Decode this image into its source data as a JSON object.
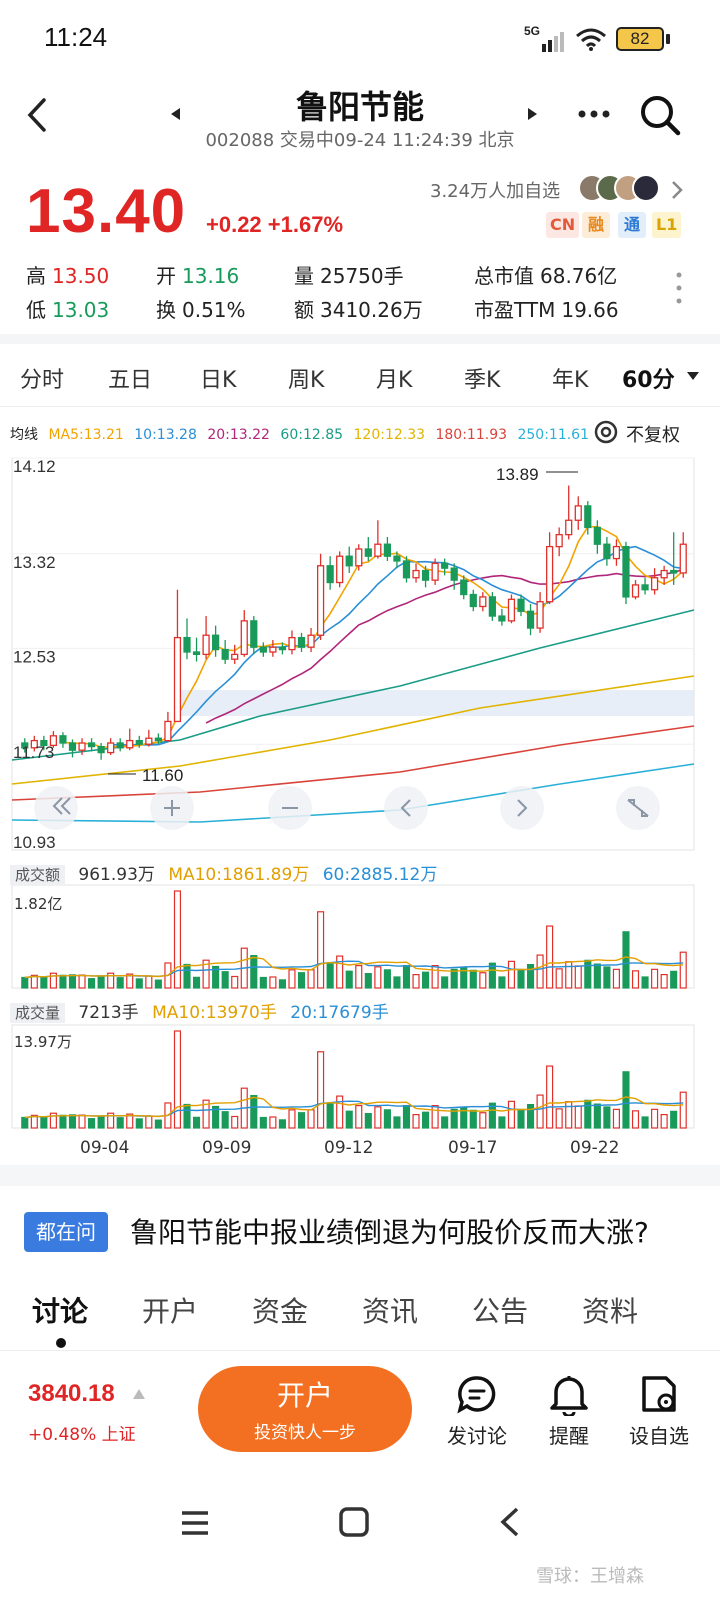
{
  "status_bar": {
    "time": "11:24",
    "network": "5G",
    "battery": "82"
  },
  "header": {
    "title": "鲁阳节能",
    "subtitle": "002088 交易中09-24 11:24:39 北京"
  },
  "quote": {
    "price": "13.40",
    "change": "+0.22 +1.67%",
    "watchers": "3.24万人加自选",
    "tags": [
      "CN",
      "融",
      "通",
      "L1"
    ],
    "stats": [
      {
        "label": "高",
        "value": "13.50"
      },
      {
        "label": "开",
        "value": "13.16"
      },
      {
        "label": "量",
        "value": "25750手"
      },
      {
        "label": "总市值",
        "value": "68.76亿"
      },
      {
        "label": "低",
        "value": "13.03"
      },
      {
        "label": "换",
        "value": "0.51%"
      },
      {
        "label": "额",
        "value": "3410.26万"
      },
      {
        "label": "市盈TTM",
        "value": "19.66"
      }
    ]
  },
  "period_tabs": [
    "分时",
    "五日",
    "日K",
    "周K",
    "月K",
    "季K",
    "年K",
    "60分"
  ],
  "ma_legend": {
    "label": "均线",
    "items": [
      {
        "text": "MA5:13.21",
        "color": "#f2a300"
      },
      {
        "text": "10:13.28",
        "color": "#2a8fd6"
      },
      {
        "text": "20:13.22",
        "color": "#b0267a"
      },
      {
        "text": "60:12.85",
        "color": "#1a9c86"
      },
      {
        "text": "120:12.33",
        "color": "#e0b400"
      },
      {
        "text": "180:11.93",
        "color": "#d9443a"
      },
      {
        "text": "250:11.61",
        "color": "#2ab0d8"
      }
    ],
    "adjust": "不复权"
  },
  "chart_data": {
    "type": "candlestick",
    "y_ticks": [
      "14.12",
      "13.32",
      "12.53",
      "11.73",
      "10.93"
    ],
    "high_marker": "13.89",
    "low_marker": "11.60",
    "x_labels": [
      "09-04",
      "09-09",
      "09-12",
      "09-17",
      "09-22"
    ],
    "candles": [
      [
        11.74,
        11.7,
        11.78,
        11.66
      ],
      [
        11.7,
        11.76,
        11.8,
        11.67
      ],
      [
        11.76,
        11.72,
        11.8,
        11.68
      ],
      [
        11.72,
        11.8,
        11.84,
        11.7
      ],
      [
        11.8,
        11.74,
        11.83,
        11.7
      ],
      [
        11.74,
        11.68,
        11.77,
        11.62
      ],
      [
        11.68,
        11.74,
        11.78,
        11.64
      ],
      [
        11.74,
        11.71,
        11.78,
        11.67
      ],
      [
        11.71,
        11.66,
        11.74,
        11.6
      ],
      [
        11.66,
        11.74,
        11.78,
        11.64
      ],
      [
        11.74,
        11.7,
        11.78,
        11.67
      ],
      [
        11.7,
        11.76,
        11.86,
        11.68
      ],
      [
        11.76,
        11.73,
        11.8,
        11.7
      ],
      [
        11.73,
        11.78,
        11.85,
        11.71
      ],
      [
        11.78,
        11.76,
        11.82,
        11.73
      ],
      [
        11.76,
        11.92,
        12.0,
        11.75
      ],
      [
        11.92,
        12.62,
        13.02,
        11.92
      ],
      [
        12.62,
        12.5,
        12.78,
        12.44
      ],
      [
        12.5,
        12.48,
        12.62,
        12.42
      ],
      [
        12.48,
        12.64,
        12.8,
        12.44
      ],
      [
        12.64,
        12.52,
        12.72,
        12.46
      ],
      [
        12.52,
        12.44,
        12.6,
        12.4
      ],
      [
        12.44,
        12.48,
        12.56,
        12.4
      ],
      [
        12.48,
        12.76,
        12.85,
        12.46
      ],
      [
        12.76,
        12.54,
        12.8,
        12.48
      ],
      [
        12.54,
        12.5,
        12.58,
        12.46
      ],
      [
        12.5,
        12.54,
        12.6,
        12.46
      ],
      [
        12.54,
        12.52,
        12.58,
        12.48
      ],
      [
        12.52,
        12.62,
        12.68,
        12.48
      ],
      [
        12.62,
        12.54,
        12.66,
        12.5
      ],
      [
        12.54,
        12.64,
        12.7,
        12.5
      ],
      [
        12.64,
        13.22,
        13.32,
        12.6
      ],
      [
        13.22,
        13.08,
        13.3,
        13.02
      ],
      [
        13.08,
        13.3,
        13.34,
        13.04
      ],
      [
        13.3,
        13.22,
        13.38,
        13.16
      ],
      [
        13.22,
        13.36,
        13.4,
        13.18
      ],
      [
        13.36,
        13.3,
        13.46,
        13.26
      ],
      [
        13.3,
        13.4,
        13.6,
        13.28
      ],
      [
        13.4,
        13.3,
        13.46,
        13.26
      ],
      [
        13.3,
        13.26,
        13.34,
        13.2
      ],
      [
        13.26,
        13.12,
        13.3,
        13.08
      ],
      [
        13.12,
        13.18,
        13.24,
        13.08
      ],
      [
        13.18,
        13.1,
        13.22,
        13.04
      ],
      [
        13.1,
        13.24,
        13.28,
        13.06
      ],
      [
        13.24,
        13.2,
        13.28,
        13.14
      ],
      [
        13.2,
        13.1,
        13.24,
        13.02
      ],
      [
        13.1,
        12.98,
        13.14,
        12.94
      ],
      [
        12.98,
        12.88,
        13.02,
        12.84
      ],
      [
        12.88,
        12.96,
        13.0,
        12.84
      ],
      [
        12.96,
        12.8,
        13.0,
        12.76
      ],
      [
        12.8,
        12.76,
        12.86,
        12.72
      ],
      [
        12.76,
        12.94,
        12.98,
        12.74
      ],
      [
        12.94,
        12.84,
        12.98,
        12.8
      ],
      [
        12.84,
        12.7,
        12.9,
        12.64
      ],
      [
        12.7,
        12.92,
        13.0,
        12.66
      ],
      [
        12.92,
        13.38,
        13.5,
        12.9
      ],
      [
        13.38,
        13.48,
        13.54,
        13.3
      ],
      [
        13.48,
        13.6,
        13.89,
        13.44
      ],
      [
        13.6,
        13.72,
        13.8,
        13.52
      ],
      [
        13.72,
        13.54,
        13.76,
        13.48
      ],
      [
        13.54,
        13.4,
        13.6,
        13.32
      ],
      [
        13.4,
        13.28,
        13.46,
        13.22
      ],
      [
        13.28,
        13.38,
        13.44,
        13.22
      ],
      [
        13.38,
        12.96,
        13.42,
        12.9
      ],
      [
        12.96,
        13.06,
        13.1,
        12.94
      ],
      [
        13.06,
        13.02,
        13.12,
        12.98
      ],
      [
        13.02,
        13.12,
        13.2,
        12.98
      ],
      [
        13.12,
        13.18,
        13.22,
        13.06
      ],
      [
        13.18,
        13.16,
        13.5,
        13.06
      ],
      [
        13.16,
        13.4,
        13.5,
        13.12
      ]
    ]
  },
  "turnover": {
    "label": "成交额",
    "value": "961.93万",
    "ma10": "MA10:1861.89万",
    "ma60": "60:2885.12万",
    "max": "1.82亿"
  },
  "volume": {
    "label": "成交量",
    "value": "7213手",
    "ma10": "MA10:13970手",
    "ma20": "20:17679手",
    "max": "13.97万"
  },
  "qa": {
    "badge": "都在问",
    "text": "鲁阳节能中报业绩倒退为何股价反而大涨?"
  },
  "bottom_tabs": [
    "讨论",
    "开户",
    "资金",
    "资讯",
    "公告",
    "资料"
  ],
  "bottom_bar": {
    "index_value": "3840.18",
    "index_change": "+0.48% 上证",
    "open_button": "开户",
    "open_sub": "投资快人一步",
    "actions": [
      "发讨论",
      "提醒",
      "设自选"
    ]
  },
  "watermark": "雪球：王增森"
}
